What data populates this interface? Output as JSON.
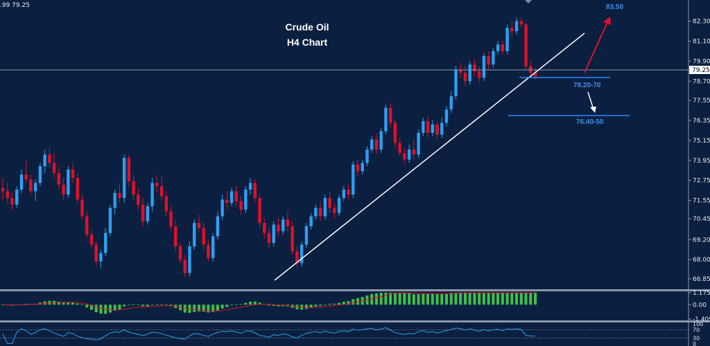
{
  "header": {
    "quote": ".99 79.25"
  },
  "chart_data": {
    "type": "candlestick",
    "title": "Crude Oil",
    "subtitle": "H4 Chart",
    "y_ticks": [
      "82.30",
      "81.10",
      "79.90",
      "78.70",
      "77.55",
      "76.35",
      "75.15",
      "73.95",
      "72.75",
      "71.55",
      "70.45",
      "69.20",
      "68.00",
      "66.85"
    ],
    "ylim": [
      66.35,
      83.4
    ],
    "current_price": "79.25",
    "annotations": {
      "target_up": "83.50",
      "support_1": "78.20-70",
      "support_2": "76.40-50"
    },
    "colors": {
      "up": "#2e9ff0",
      "down": "#e0102a",
      "trendline": "#ffffff",
      "level": "#2e86ff",
      "arrow_up": "#e0102a",
      "arrow_down": "#ffffff"
    },
    "candles": [
      [
        72.3,
        72.9,
        71.6,
        72.1
      ],
      [
        72.1,
        72.6,
        71.4,
        71.7
      ],
      [
        71.7,
        72.0,
        71.0,
        71.3
      ],
      [
        71.3,
        72.4,
        71.1,
        72.2
      ],
      [
        72.2,
        73.4,
        72.0,
        73.1
      ],
      [
        73.1,
        74.0,
        72.6,
        72.8
      ],
      [
        72.8,
        73.1,
        71.9,
        72.1
      ],
      [
        72.1,
        72.8,
        71.5,
        72.6
      ],
      [
        72.6,
        73.8,
        72.4,
        73.6
      ],
      [
        73.6,
        74.6,
        73.2,
        74.3
      ],
      [
        74.3,
        74.7,
        73.5,
        73.8
      ],
      [
        73.8,
        74.4,
        72.9,
        73.2
      ],
      [
        73.2,
        73.6,
        72.2,
        72.5
      ],
      [
        72.5,
        72.9,
        71.6,
        71.9
      ],
      [
        71.9,
        73.6,
        71.7,
        73.4
      ],
      [
        73.4,
        73.8,
        72.6,
        72.9
      ],
      [
        72.9,
        73.2,
        71.4,
        71.6
      ],
      [
        71.6,
        71.9,
        70.4,
        70.6
      ],
      [
        70.6,
        70.9,
        69.3,
        69.5
      ],
      [
        69.5,
        69.8,
        68.7,
        68.9
      ],
      [
        68.9,
        69.1,
        67.6,
        67.9
      ],
      [
        67.9,
        68.6,
        67.5,
        68.4
      ],
      [
        68.4,
        69.9,
        68.2,
        69.6
      ],
      [
        69.6,
        71.3,
        69.4,
        71.1
      ],
      [
        71.1,
        72.2,
        70.7,
        72.0
      ],
      [
        72.0,
        72.6,
        71.4,
        71.7
      ],
      [
        71.7,
        74.3,
        71.4,
        74.1
      ],
      [
        74.1,
        74.3,
        72.4,
        72.7
      ],
      [
        72.7,
        73.1,
        71.6,
        71.9
      ],
      [
        71.9,
        72.3,
        71.0,
        71.3
      ],
      [
        71.3,
        71.7,
        70.0,
        70.3
      ],
      [
        70.3,
        71.4,
        70.1,
        71.2
      ],
      [
        71.2,
        72.9,
        70.9,
        72.6
      ],
      [
        72.6,
        73.1,
        72.0,
        72.4
      ],
      [
        72.4,
        73.0,
        71.5,
        71.8
      ],
      [
        71.8,
        72.1,
        70.6,
        70.9
      ],
      [
        70.9,
        71.2,
        69.7,
        70.0
      ],
      [
        70.0,
        70.4,
        68.5,
        68.8
      ],
      [
        68.8,
        69.0,
        67.8,
        68.0
      ],
      [
        68.0,
        68.3,
        67.0,
        67.2
      ],
      [
        67.2,
        69.1,
        67.0,
        68.8
      ],
      [
        68.8,
        70.4,
        68.6,
        70.2
      ],
      [
        70.2,
        70.7,
        69.6,
        69.9
      ],
      [
        69.9,
        70.2,
        68.6,
        68.9
      ],
      [
        68.9,
        69.2,
        67.9,
        68.1
      ],
      [
        68.1,
        69.6,
        67.9,
        69.4
      ],
      [
        69.4,
        70.9,
        69.2,
        70.6
      ],
      [
        70.6,
        71.9,
        70.4,
        71.6
      ],
      [
        71.6,
        72.1,
        71.0,
        71.4
      ],
      [
        71.4,
        72.3,
        71.2,
        72.1
      ],
      [
        72.1,
        72.4,
        71.2,
        71.5
      ],
      [
        71.5,
        71.8,
        70.7,
        71.0
      ],
      [
        71.0,
        72.4,
        70.8,
        72.2
      ],
      [
        72.2,
        72.9,
        71.9,
        72.6
      ],
      [
        72.6,
        72.8,
        71.4,
        71.7
      ],
      [
        71.7,
        71.9,
        69.9,
        70.2
      ],
      [
        70.2,
        70.5,
        69.3,
        69.6
      ],
      [
        69.6,
        69.9,
        68.7,
        69.0
      ],
      [
        69.0,
        70.3,
        68.8,
        70.1
      ],
      [
        70.1,
        70.5,
        69.4,
        69.7
      ],
      [
        69.7,
        70.6,
        69.5,
        70.4
      ],
      [
        70.4,
        70.9,
        69.7,
        70.0
      ],
      [
        70.0,
        70.3,
        68.3,
        68.5
      ],
      [
        68.5,
        68.8,
        67.5,
        67.8
      ],
      [
        67.8,
        69.1,
        67.6,
        68.9
      ],
      [
        68.9,
        70.2,
        68.7,
        70.0
      ],
      [
        70.0,
        70.8,
        69.8,
        70.6
      ],
      [
        70.6,
        71.3,
        70.4,
        71.1
      ],
      [
        71.1,
        71.5,
        70.3,
        70.6
      ],
      [
        70.6,
        71.9,
        70.4,
        71.7
      ],
      [
        71.7,
        72.1,
        70.8,
        71.1
      ],
      [
        71.1,
        71.4,
        70.5,
        70.8
      ],
      [
        70.8,
        71.9,
        70.6,
        71.7
      ],
      [
        71.7,
        72.4,
        71.5,
        72.2
      ],
      [
        72.2,
        72.5,
        71.6,
        71.9
      ],
      [
        71.9,
        73.9,
        71.7,
        73.7
      ],
      [
        73.7,
        74.0,
        73.0,
        73.3
      ],
      [
        73.3,
        74.0,
        73.1,
        73.8
      ],
      [
        73.8,
        74.8,
        73.6,
        74.6
      ],
      [
        74.6,
        75.4,
        74.4,
        75.2
      ],
      [
        75.2,
        75.6,
        74.3,
        74.6
      ],
      [
        74.6,
        75.9,
        74.4,
        75.7
      ],
      [
        75.7,
        77.3,
        75.5,
        77.1
      ],
      [
        77.1,
        77.4,
        75.9,
        76.2
      ],
      [
        76.2,
        76.4,
        74.7,
        75.0
      ],
      [
        75.0,
        75.3,
        74.2,
        74.4
      ],
      [
        74.4,
        74.7,
        73.8,
        74.0
      ],
      [
        74.0,
        74.9,
        73.8,
        74.6
      ],
      [
        74.6,
        75.2,
        74.0,
        74.3
      ],
      [
        74.3,
        75.8,
        74.1,
        75.6
      ],
      [
        75.6,
        76.5,
        75.4,
        76.3
      ],
      [
        76.3,
        76.6,
        75.3,
        75.6
      ],
      [
        75.6,
        76.4,
        75.4,
        76.1
      ],
      [
        76.1,
        76.3,
        75.2,
        75.5
      ],
      [
        75.5,
        76.5,
        75.3,
        76.2
      ],
      [
        76.2,
        77.2,
        76.0,
        77.0
      ],
      [
        77.0,
        78.1,
        76.8,
        77.8
      ],
      [
        77.8,
        79.6,
        77.6,
        79.4
      ],
      [
        79.4,
        79.8,
        78.9,
        79.2
      ],
      [
        79.2,
        79.6,
        78.4,
        78.7
      ],
      [
        78.7,
        79.9,
        78.5,
        79.7
      ],
      [
        79.7,
        80.0,
        79.0,
        79.3
      ],
      [
        79.3,
        79.6,
        78.6,
        78.9
      ],
      [
        78.9,
        80.4,
        78.7,
        80.2
      ],
      [
        80.2,
        80.5,
        79.4,
        79.7
      ],
      [
        79.7,
        80.7,
        79.5,
        80.5
      ],
      [
        80.5,
        81.1,
        80.3,
        80.9
      ],
      [
        80.9,
        81.1,
        80.3,
        80.5
      ],
      [
        80.5,
        82.1,
        80.3,
        81.9
      ],
      [
        81.9,
        82.3,
        81.4,
        81.7
      ],
      [
        81.7,
        82.5,
        81.5,
        82.3
      ],
      [
        82.3,
        82.5,
        81.9,
        82.1
      ],
      [
        82.1,
        82.2,
        79.4,
        79.6
      ],
      [
        79.6,
        79.9,
        78.9,
        79.2
      ],
      [
        79.2,
        79.5,
        78.8,
        79.0
      ]
    ],
    "macd": {
      "y_ticks": [
        "1.175",
        "0.00",
        "-1.409"
      ],
      "ylim": [
        -1.409,
        1.175
      ]
    },
    "oscillator": {
      "y_ticks": [
        "100",
        "70",
        "30",
        "0"
      ],
      "ylim": [
        0,
        100
      ]
    }
  }
}
